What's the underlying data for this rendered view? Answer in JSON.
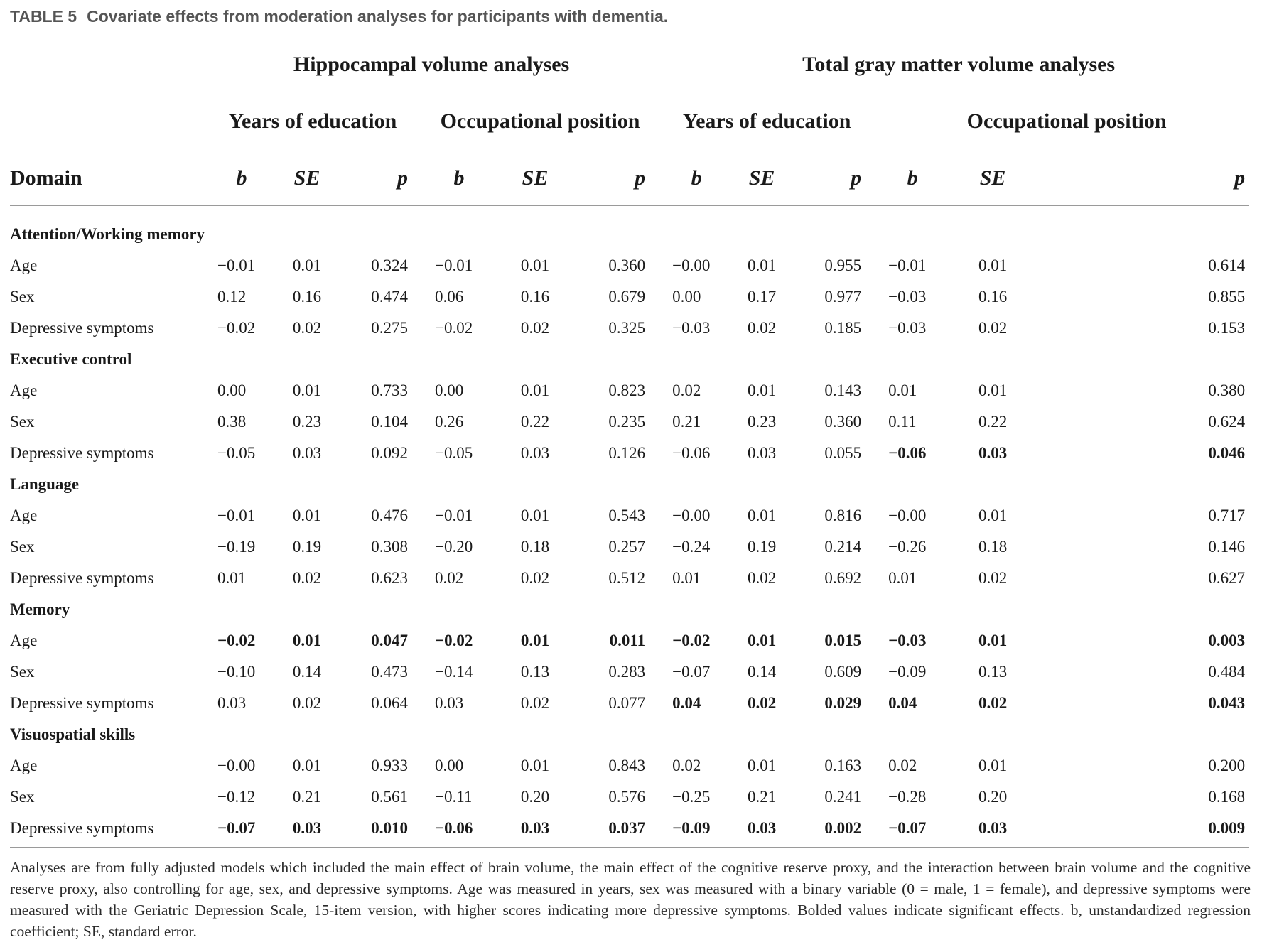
{
  "caption": {
    "table_number": "TABLE 5",
    "title": "Covariate effects from moderation analyses for participants with dementia."
  },
  "headers": {
    "group_hippocampal": "Hippocampal volume analyses",
    "group_total_gray": "Total gray matter volume analyses",
    "years_of_education": "Years of education",
    "occupational_position": "Occupational position",
    "domain": "Domain",
    "b": "b",
    "se": "SE",
    "p": "p"
  },
  "sections": [
    {
      "name": "Attention/Working memory",
      "rows": [
        {
          "label": "Age",
          "values": [
            "−0.01",
            "0.01",
            "0.324",
            "−0.01",
            "0.01",
            "0.360",
            "−0.00",
            "0.01",
            "0.955",
            "−0.01",
            "0.01",
            "0.614"
          ],
          "bold": [
            false,
            false,
            false,
            false,
            false,
            false,
            false,
            false,
            false,
            false,
            false,
            false
          ]
        },
        {
          "label": "Sex",
          "values": [
            "0.12",
            "0.16",
            "0.474",
            "0.06",
            "0.16",
            "0.679",
            "0.00",
            "0.17",
            "0.977",
            "−0.03",
            "0.16",
            "0.855"
          ],
          "bold": [
            false,
            false,
            false,
            false,
            false,
            false,
            false,
            false,
            false,
            false,
            false,
            false
          ]
        },
        {
          "label": "Depressive symptoms",
          "values": [
            "−0.02",
            "0.02",
            "0.275",
            "−0.02",
            "0.02",
            "0.325",
            "−0.03",
            "0.02",
            "0.185",
            "−0.03",
            "0.02",
            "0.153"
          ],
          "bold": [
            false,
            false,
            false,
            false,
            false,
            false,
            false,
            false,
            false,
            false,
            false,
            false
          ]
        }
      ]
    },
    {
      "name": "Executive control",
      "rows": [
        {
          "label": "Age",
          "values": [
            "0.00",
            "0.01",
            "0.733",
            "0.00",
            "0.01",
            "0.823",
            "0.02",
            "0.01",
            "0.143",
            "0.01",
            "0.01",
            "0.380"
          ],
          "bold": [
            false,
            false,
            false,
            false,
            false,
            false,
            false,
            false,
            false,
            false,
            false,
            false
          ]
        },
        {
          "label": "Sex",
          "values": [
            "0.38",
            "0.23",
            "0.104",
            "0.26",
            "0.22",
            "0.235",
            "0.21",
            "0.23",
            "0.360",
            "0.11",
            "0.22",
            "0.624"
          ],
          "bold": [
            false,
            false,
            false,
            false,
            false,
            false,
            false,
            false,
            false,
            false,
            false,
            false
          ]
        },
        {
          "label": "Depressive symptoms",
          "values": [
            "−0.05",
            "0.03",
            "0.092",
            "−0.05",
            "0.03",
            "0.126",
            "−0.06",
            "0.03",
            "0.055",
            "−0.06",
            "0.03",
            "0.046"
          ],
          "bold": [
            false,
            false,
            false,
            false,
            false,
            false,
            false,
            false,
            false,
            true,
            true,
            true
          ]
        }
      ]
    },
    {
      "name": "Language",
      "rows": [
        {
          "label": "Age",
          "values": [
            "−0.01",
            "0.01",
            "0.476",
            "−0.01",
            "0.01",
            "0.543",
            "−0.00",
            "0.01",
            "0.816",
            "−0.00",
            "0.01",
            "0.717"
          ],
          "bold": [
            false,
            false,
            false,
            false,
            false,
            false,
            false,
            false,
            false,
            false,
            false,
            false
          ]
        },
        {
          "label": "Sex",
          "values": [
            "−0.19",
            "0.19",
            "0.308",
            "−0.20",
            "0.18",
            "0.257",
            "−0.24",
            "0.19",
            "0.214",
            "−0.26",
            "0.18",
            "0.146"
          ],
          "bold": [
            false,
            false,
            false,
            false,
            false,
            false,
            false,
            false,
            false,
            false,
            false,
            false
          ]
        },
        {
          "label": "Depressive symptoms",
          "values": [
            "0.01",
            "0.02",
            "0.623",
            "0.02",
            "0.02",
            "0.512",
            "0.01",
            "0.02",
            "0.692",
            "0.01",
            "0.02",
            "0.627"
          ],
          "bold": [
            false,
            false,
            false,
            false,
            false,
            false,
            false,
            false,
            false,
            false,
            false,
            false
          ]
        }
      ]
    },
    {
      "name": "Memory",
      "rows": [
        {
          "label": "Age",
          "values": [
            "−0.02",
            "0.01",
            "0.047",
            "−0.02",
            "0.01",
            "0.011",
            "−0.02",
            "0.01",
            "0.015",
            "−0.03",
            "0.01",
            "0.003"
          ],
          "bold": [
            true,
            true,
            true,
            true,
            true,
            true,
            true,
            true,
            true,
            true,
            true,
            true
          ]
        },
        {
          "label": "Sex",
          "values": [
            "−0.10",
            "0.14",
            "0.473",
            "−0.14",
            "0.13",
            "0.283",
            "−0.07",
            "0.14",
            "0.609",
            "−0.09",
            "0.13",
            "0.484"
          ],
          "bold": [
            false,
            false,
            false,
            false,
            false,
            false,
            false,
            false,
            false,
            false,
            false,
            false
          ]
        },
        {
          "label": "Depressive symptoms",
          "values": [
            "0.03",
            "0.02",
            "0.064",
            "0.03",
            "0.02",
            "0.077",
            "0.04",
            "0.02",
            "0.029",
            "0.04",
            "0.02",
            "0.043"
          ],
          "bold": [
            false,
            false,
            false,
            false,
            false,
            false,
            true,
            true,
            true,
            true,
            true,
            true
          ]
        }
      ]
    },
    {
      "name": "Visuospatial skills",
      "rows": [
        {
          "label": "Age",
          "values": [
            "−0.00",
            "0.01",
            "0.933",
            "0.00",
            "0.01",
            "0.843",
            "0.02",
            "0.01",
            "0.163",
            "0.02",
            "0.01",
            "0.200"
          ],
          "bold": [
            false,
            false,
            false,
            false,
            false,
            false,
            false,
            false,
            false,
            false,
            false,
            false
          ]
        },
        {
          "label": "Sex",
          "values": [
            "−0.12",
            "0.21",
            "0.561",
            "−0.11",
            "0.20",
            "0.576",
            "−0.25",
            "0.21",
            "0.241",
            "−0.28",
            "0.20",
            "0.168"
          ],
          "bold": [
            false,
            false,
            false,
            false,
            false,
            false,
            false,
            false,
            false,
            false,
            false,
            false
          ]
        },
        {
          "label": "Depressive symptoms",
          "values": [
            "−0.07",
            "0.03",
            "0.010",
            "−0.06",
            "0.03",
            "0.037",
            "−0.09",
            "0.03",
            "0.002",
            "−0.07",
            "0.03",
            "0.009"
          ],
          "bold": [
            true,
            true,
            true,
            true,
            true,
            true,
            true,
            true,
            true,
            true,
            true,
            true
          ]
        }
      ]
    }
  ],
  "footnote": "Analyses are from fully adjusted models which included the main effect of brain volume, the main effect of the cognitive reserve proxy, and the interaction between brain volume and the cognitive reserve proxy, also controlling for age, sex, and depressive symptoms. Age was measured in years, sex was measured with a binary variable (0 = male, 1 = female), and depressive symptoms were measured with the Geriatric Depression Scale, 15-item version, with higher scores indicating more depressive symptoms. Bolded values indicate significant effects. b, unstandardized regression coefficient; SE, standard error."
}
